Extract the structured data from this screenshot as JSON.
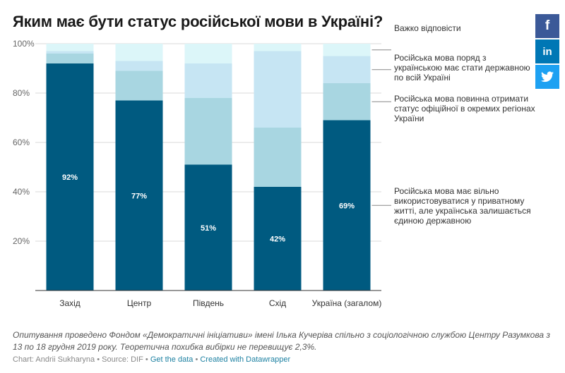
{
  "title": "Яким має бути статус російської мови в Україні?",
  "share": {
    "facebook": "f",
    "linkedin": "in",
    "twitter": "twitter"
  },
  "note": "Опитування проведено Фондом «Демократичні ініціативи» імені Ілька Кучеріва спільно з соціологічною службою Центру Разумкова з 13 по 18 грудня 2019 року. Теоретична похибка вибірки не перевищує 2,3%.",
  "footer": {
    "byline": "Chart: Andrii Sukharyna",
    "source": "Source: DIF",
    "get_data": "Get the data",
    "created_with": "Created with Datawrapper",
    "sep": "•",
    "link_color": "#1d81a2"
  },
  "chart_data": {
    "type": "bar",
    "stacked": true,
    "categories": [
      "Захід",
      "Центр",
      "Південь",
      "Схід",
      "Україна (загалом)"
    ],
    "ylim": [
      0,
      100
    ],
    "yticks": [
      20,
      40,
      60,
      80,
      100
    ],
    "ytick_labels": [
      "20%",
      "40%",
      "60%",
      "80%",
      "100%"
    ],
    "grid": true,
    "legend_position": "right",
    "series": [
      {
        "name": "Російська мова має вільно використовуватися у приватному житті, але українська залишається єдиною державною",
        "color": "#005a80",
        "values": [
          92,
          77,
          51,
          42,
          69
        ],
        "labels": [
          "92%",
          "77%",
          "51%",
          "42%",
          "69%"
        ]
      },
      {
        "name": "Російська мова повинна отримати статус офіційної в окремих регіонах України",
        "color": "#a8d6e1",
        "values": [
          4,
          12,
          27,
          24,
          15
        ]
      },
      {
        "name": "Російська мова поряд з українською має стати державною по всій Україні",
        "color": "#c6e5f3",
        "values": [
          1,
          4,
          14,
          31,
          11
        ]
      },
      {
        "name": "Важко відповісти",
        "color": "#dcf6f9",
        "values": [
          3,
          7,
          8,
          3,
          5
        ]
      }
    ]
  }
}
